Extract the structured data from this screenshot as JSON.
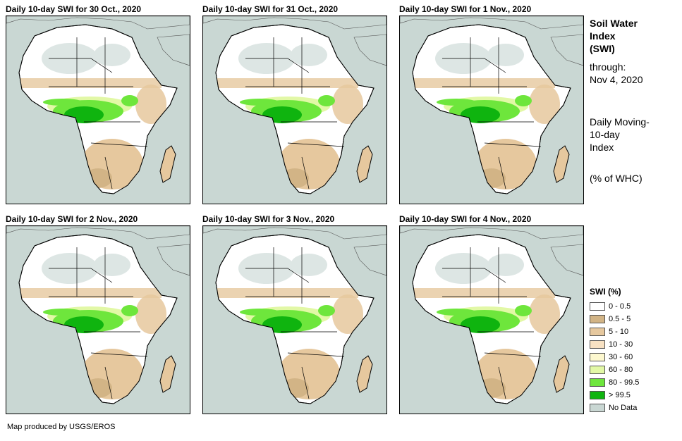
{
  "panels": [
    {
      "title": "Daily 10-day SWI for 30 Oct., 2020",
      "variant": 0
    },
    {
      "title": "Daily 10-day SWI for 31 Oct., 2020",
      "variant": 1
    },
    {
      "title": "Daily 10-day SWI for 1 Nov., 2020",
      "variant": 2
    },
    {
      "title": "Daily 10-day SWI for 2 Nov., 2020",
      "variant": 3
    },
    {
      "title": "Daily 10-day SWI for 3 Nov., 2020",
      "variant": 4
    },
    {
      "title": "Daily 10-day SWI for 4 Nov., 2020",
      "variant": 5
    }
  ],
  "sidebar": {
    "title_line1": "Soil Water",
    "title_line2": "Index",
    "title_line3": "(SWI)",
    "through_label": "through:",
    "through_date": "Nov 4, 2020",
    "desc_line1": "Daily Moving-",
    "desc_line2": "10-day",
    "desc_line3": "Index",
    "units": "(% of WHC)"
  },
  "legend": {
    "title": "SWI (%)",
    "items": [
      {
        "label": "0 - 0.5",
        "color": "#ffffff"
      },
      {
        "label": "0.5 - 5",
        "color": "#d2b486"
      },
      {
        "label": "5 - 10",
        "color": "#e6c89e"
      },
      {
        "label": "10 - 30",
        "color": "#f7e1c3"
      },
      {
        "label": "30 - 60",
        "color": "#fdf8cf"
      },
      {
        "label": "60 - 80",
        "color": "#e2f8a6"
      },
      {
        "label": "80 - 99.5",
        "color": "#6ee63c"
      },
      {
        "label": "> 99.5",
        "color": "#0fb40f"
      },
      {
        "label": "No Data",
        "color": "#c9d7d3"
      }
    ]
  },
  "colors": {
    "ocean": "#c9d7d3",
    "land_dry": "#ffffff",
    "sahara_nodata": "#dde6e4",
    "tan": "#e6c89e",
    "dark_tan": "#d2b486",
    "light_green": "#e2f8a6",
    "green": "#6ee63c",
    "dark_green": "#0fb40f"
  },
  "credit": "Map produced by USGS/EROS"
}
